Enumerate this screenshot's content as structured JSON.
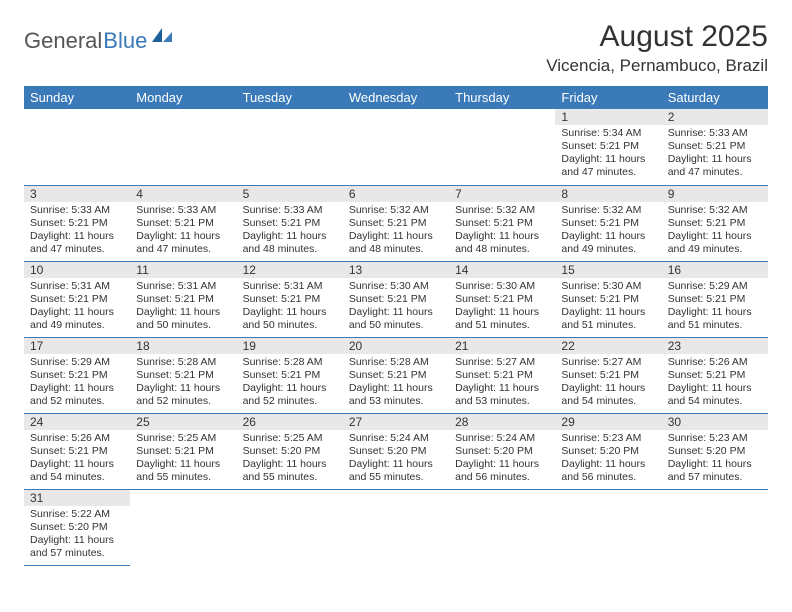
{
  "logo": {
    "text_general": "General",
    "text_blue": "Blue"
  },
  "title": "August 2025",
  "location": "Vicencia, Pernambuco, Brazil",
  "colors": {
    "header_bg": "#3a7ab8",
    "header_text": "#ffffff",
    "daynum_bg": "#e8e8e8",
    "cell_border": "#3a7ab8",
    "text": "#333333",
    "logo_gray": "#555555",
    "logo_blue": "#3a7ab8",
    "page_bg": "#ffffff"
  },
  "typography": {
    "title_fontsize": 30,
    "location_fontsize": 17,
    "header_fontsize": 13,
    "daynum_fontsize": 12,
    "body_fontsize": 10.5,
    "font_family": "Arial"
  },
  "weekdays": [
    "Sunday",
    "Monday",
    "Tuesday",
    "Wednesday",
    "Thursday",
    "Friday",
    "Saturday"
  ],
  "weeks": [
    [
      null,
      null,
      null,
      null,
      null,
      {
        "n": "1",
        "sunrise": "5:34 AM",
        "sunset": "5:21 PM",
        "daylight": "11 hours and 47 minutes."
      },
      {
        "n": "2",
        "sunrise": "5:33 AM",
        "sunset": "5:21 PM",
        "daylight": "11 hours and 47 minutes."
      }
    ],
    [
      {
        "n": "3",
        "sunrise": "5:33 AM",
        "sunset": "5:21 PM",
        "daylight": "11 hours and 47 minutes."
      },
      {
        "n": "4",
        "sunrise": "5:33 AM",
        "sunset": "5:21 PM",
        "daylight": "11 hours and 47 minutes."
      },
      {
        "n": "5",
        "sunrise": "5:33 AM",
        "sunset": "5:21 PM",
        "daylight": "11 hours and 48 minutes."
      },
      {
        "n": "6",
        "sunrise": "5:32 AM",
        "sunset": "5:21 PM",
        "daylight": "11 hours and 48 minutes."
      },
      {
        "n": "7",
        "sunrise": "5:32 AM",
        "sunset": "5:21 PM",
        "daylight": "11 hours and 48 minutes."
      },
      {
        "n": "8",
        "sunrise": "5:32 AM",
        "sunset": "5:21 PM",
        "daylight": "11 hours and 49 minutes."
      },
      {
        "n": "9",
        "sunrise": "5:32 AM",
        "sunset": "5:21 PM",
        "daylight": "11 hours and 49 minutes."
      }
    ],
    [
      {
        "n": "10",
        "sunrise": "5:31 AM",
        "sunset": "5:21 PM",
        "daylight": "11 hours and 49 minutes."
      },
      {
        "n": "11",
        "sunrise": "5:31 AM",
        "sunset": "5:21 PM",
        "daylight": "11 hours and 50 minutes."
      },
      {
        "n": "12",
        "sunrise": "5:31 AM",
        "sunset": "5:21 PM",
        "daylight": "11 hours and 50 minutes."
      },
      {
        "n": "13",
        "sunrise": "5:30 AM",
        "sunset": "5:21 PM",
        "daylight": "11 hours and 50 minutes."
      },
      {
        "n": "14",
        "sunrise": "5:30 AM",
        "sunset": "5:21 PM",
        "daylight": "11 hours and 51 minutes."
      },
      {
        "n": "15",
        "sunrise": "5:30 AM",
        "sunset": "5:21 PM",
        "daylight": "11 hours and 51 minutes."
      },
      {
        "n": "16",
        "sunrise": "5:29 AM",
        "sunset": "5:21 PM",
        "daylight": "11 hours and 51 minutes."
      }
    ],
    [
      {
        "n": "17",
        "sunrise": "5:29 AM",
        "sunset": "5:21 PM",
        "daylight": "11 hours and 52 minutes."
      },
      {
        "n": "18",
        "sunrise": "5:28 AM",
        "sunset": "5:21 PM",
        "daylight": "11 hours and 52 minutes."
      },
      {
        "n": "19",
        "sunrise": "5:28 AM",
        "sunset": "5:21 PM",
        "daylight": "11 hours and 52 minutes."
      },
      {
        "n": "20",
        "sunrise": "5:28 AM",
        "sunset": "5:21 PM",
        "daylight": "11 hours and 53 minutes."
      },
      {
        "n": "21",
        "sunrise": "5:27 AM",
        "sunset": "5:21 PM",
        "daylight": "11 hours and 53 minutes."
      },
      {
        "n": "22",
        "sunrise": "5:27 AM",
        "sunset": "5:21 PM",
        "daylight": "11 hours and 54 minutes."
      },
      {
        "n": "23",
        "sunrise": "5:26 AM",
        "sunset": "5:21 PM",
        "daylight": "11 hours and 54 minutes."
      }
    ],
    [
      {
        "n": "24",
        "sunrise": "5:26 AM",
        "sunset": "5:21 PM",
        "daylight": "11 hours and 54 minutes."
      },
      {
        "n": "25",
        "sunrise": "5:25 AM",
        "sunset": "5:21 PM",
        "daylight": "11 hours and 55 minutes."
      },
      {
        "n": "26",
        "sunrise": "5:25 AM",
        "sunset": "5:20 PM",
        "daylight": "11 hours and 55 minutes."
      },
      {
        "n": "27",
        "sunrise": "5:24 AM",
        "sunset": "5:20 PM",
        "daylight": "11 hours and 55 minutes."
      },
      {
        "n": "28",
        "sunrise": "5:24 AM",
        "sunset": "5:20 PM",
        "daylight": "11 hours and 56 minutes."
      },
      {
        "n": "29",
        "sunrise": "5:23 AM",
        "sunset": "5:20 PM",
        "daylight": "11 hours and 56 minutes."
      },
      {
        "n": "30",
        "sunrise": "5:23 AM",
        "sunset": "5:20 PM",
        "daylight": "11 hours and 57 minutes."
      }
    ],
    [
      {
        "n": "31",
        "sunrise": "5:22 AM",
        "sunset": "5:20 PM",
        "daylight": "11 hours and 57 minutes."
      },
      null,
      null,
      null,
      null,
      null,
      null
    ]
  ],
  "labels": {
    "sunrise": "Sunrise: ",
    "sunset": "Sunset: ",
    "daylight": "Daylight: "
  }
}
